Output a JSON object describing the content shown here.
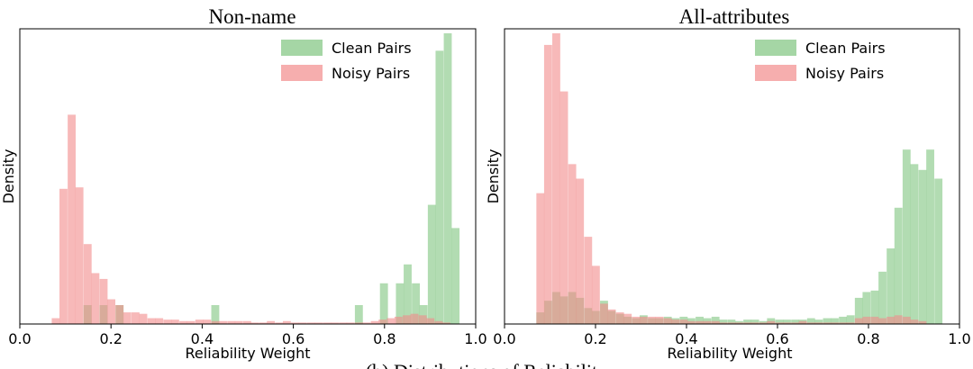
{
  "caption": "(b) Distributions of Reliability",
  "colors": {
    "clean": "#7fc47f",
    "noisy": "#f28b8b",
    "axis": "#000000"
  },
  "chart_data": [
    {
      "type": "bar",
      "title": "Non-name",
      "xlabel": "Reliability Weight",
      "ylabel": "Density",
      "xlim": [
        0.0,
        1.0
      ],
      "ylim": [
        0,
        1.0
      ],
      "xticks": [
        "0.0",
        "0.2",
        "0.4",
        "0.6",
        "0.8",
        "1.0"
      ],
      "bin_width": 0.0175,
      "series": [
        {
          "name": "Clean Pairs",
          "bins": [
            [
              0.14,
              0.065
            ],
            [
              0.175,
              0.065
            ],
            [
              0.21,
              0.065
            ],
            [
              0.42,
              0.065
            ],
            [
              0.735,
              0.065
            ],
            [
              0.79,
              0.14
            ],
            [
              0.825,
              0.14
            ],
            [
              0.842,
              0.205
            ],
            [
              0.86,
              0.14
            ],
            [
              0.877,
              0.065
            ],
            [
              0.895,
              0.41
            ],
            [
              0.912,
              0.94
            ],
            [
              0.93,
              1.0
            ],
            [
              0.947,
              0.33
            ]
          ]
        },
        {
          "name": "Noisy Pairs",
          "bins": [
            [
              0.07,
              0.02
            ],
            [
              0.087,
              0.465
            ],
            [
              0.105,
              0.72
            ],
            [
              0.122,
              0.47
            ],
            [
              0.14,
              0.275
            ],
            [
              0.157,
              0.175
            ],
            [
              0.175,
              0.155
            ],
            [
              0.192,
              0.085
            ],
            [
              0.21,
              0.065
            ],
            [
              0.227,
              0.04
            ],
            [
              0.245,
              0.04
            ],
            [
              0.262,
              0.035
            ],
            [
              0.28,
              0.02
            ],
            [
              0.297,
              0.02
            ],
            [
              0.315,
              0.015
            ],
            [
              0.332,
              0.015
            ],
            [
              0.35,
              0.01
            ],
            [
              0.367,
              0.01
            ],
            [
              0.385,
              0.015
            ],
            [
              0.402,
              0.015
            ],
            [
              0.42,
              0.01
            ],
            [
              0.437,
              0.01
            ],
            [
              0.455,
              0.01
            ],
            [
              0.472,
              0.01
            ],
            [
              0.49,
              0.01
            ],
            [
              0.507,
              0.005
            ],
            [
              0.525,
              0.005
            ],
            [
              0.542,
              0.01
            ],
            [
              0.56,
              0.005
            ],
            [
              0.577,
              0.01
            ],
            [
              0.595,
              0.005
            ],
            [
              0.612,
              0.005
            ],
            [
              0.63,
              0.005
            ],
            [
              0.647,
              0.005
            ],
            [
              0.665,
              0.005
            ],
            [
              0.682,
              0.005
            ],
            [
              0.7,
              0.005
            ],
            [
              0.717,
              0.005
            ],
            [
              0.735,
              0.005
            ],
            [
              0.752,
              0.005
            ],
            [
              0.77,
              0.01
            ],
            [
              0.787,
              0.015
            ],
            [
              0.805,
              0.02
            ],
            [
              0.822,
              0.025
            ],
            [
              0.84,
              0.03
            ],
            [
              0.857,
              0.035
            ],
            [
              0.875,
              0.03
            ],
            [
              0.892,
              0.02
            ],
            [
              0.91,
              0.01
            ],
            [
              0.927,
              0.005
            ]
          ]
        }
      ]
    },
    {
      "type": "bar",
      "title": "All-attributes",
      "xlabel": "Reliability Weight",
      "ylabel": "Density",
      "xlim": [
        0.0,
        1.0
      ],
      "ylim": [
        0,
        1.0
      ],
      "xticks": [
        "0.0",
        "0.2",
        "0.4",
        "0.6",
        "0.8",
        "1.0"
      ],
      "bin_width": 0.0175,
      "series": [
        {
          "name": "Clean Pairs",
          "bins": [
            [
              0.07,
              0.04
            ],
            [
              0.087,
              0.08
            ],
            [
              0.105,
              0.11
            ],
            [
              0.122,
              0.095
            ],
            [
              0.14,
              0.11
            ],
            [
              0.157,
              0.09
            ],
            [
              0.175,
              0.055
            ],
            [
              0.192,
              0.045
            ],
            [
              0.21,
              0.08
            ],
            [
              0.227,
              0.045
            ],
            [
              0.245,
              0.035
            ],
            [
              0.262,
              0.025
            ],
            [
              0.28,
              0.02
            ],
            [
              0.297,
              0.03
            ],
            [
              0.315,
              0.02
            ],
            [
              0.332,
              0.02
            ],
            [
              0.35,
              0.025
            ],
            [
              0.367,
              0.02
            ],
            [
              0.385,
              0.025
            ],
            [
              0.402,
              0.02
            ],
            [
              0.42,
              0.025
            ],
            [
              0.437,
              0.02
            ],
            [
              0.455,
              0.025
            ],
            [
              0.472,
              0.015
            ],
            [
              0.49,
              0.015
            ],
            [
              0.507,
              0.01
            ],
            [
              0.525,
              0.015
            ],
            [
              0.542,
              0.015
            ],
            [
              0.56,
              0.01
            ],
            [
              0.577,
              0.02
            ],
            [
              0.595,
              0.015
            ],
            [
              0.612,
              0.015
            ],
            [
              0.63,
              0.015
            ],
            [
              0.647,
              0.015
            ],
            [
              0.665,
              0.02
            ],
            [
              0.682,
              0.015
            ],
            [
              0.7,
              0.02
            ],
            [
              0.717,
              0.02
            ],
            [
              0.735,
              0.025
            ],
            [
              0.752,
              0.03
            ],
            [
              0.77,
              0.09
            ],
            [
              0.787,
              0.11
            ],
            [
              0.805,
              0.115
            ],
            [
              0.822,
              0.18
            ],
            [
              0.84,
              0.26
            ],
            [
              0.857,
              0.4
            ],
            [
              0.875,
              0.6
            ],
            [
              0.892,
              0.55
            ],
            [
              0.91,
              0.53
            ],
            [
              0.927,
              0.6
            ],
            [
              0.945,
              0.5
            ]
          ]
        },
        {
          "name": "Noisy Pairs",
          "bins": [
            [
              0.07,
              0.45
            ],
            [
              0.087,
              0.96
            ],
            [
              0.105,
              1.0
            ],
            [
              0.122,
              0.8
            ],
            [
              0.14,
              0.55
            ],
            [
              0.157,
              0.5
            ],
            [
              0.175,
              0.3
            ],
            [
              0.192,
              0.2
            ],
            [
              0.21,
              0.07
            ],
            [
              0.227,
              0.05
            ],
            [
              0.245,
              0.04
            ],
            [
              0.262,
              0.035
            ],
            [
              0.28,
              0.025
            ],
            [
              0.297,
              0.025
            ],
            [
              0.315,
              0.025
            ],
            [
              0.332,
              0.025
            ],
            [
              0.35,
              0.02
            ],
            [
              0.367,
              0.015
            ],
            [
              0.385,
              0.015
            ],
            [
              0.402,
              0.01
            ],
            [
              0.42,
              0.01
            ],
            [
              0.437,
              0.01
            ],
            [
              0.455,
              0.01
            ],
            [
              0.472,
              0.005
            ],
            [
              0.49,
              0.005
            ],
            [
              0.507,
              0.005
            ],
            [
              0.525,
              0.005
            ],
            [
              0.542,
              0.005
            ],
            [
              0.56,
              0.005
            ],
            [
              0.577,
              0.01
            ],
            [
              0.595,
              0.005
            ],
            [
              0.612,
              0.005
            ],
            [
              0.63,
              0.005
            ],
            [
              0.647,
              0.01
            ],
            [
              0.665,
              0.005
            ],
            [
              0.682,
              0.005
            ],
            [
              0.7,
              0.005
            ],
            [
              0.717,
              0.005
            ],
            [
              0.735,
              0.005
            ],
            [
              0.752,
              0.005
            ],
            [
              0.77,
              0.02
            ],
            [
              0.787,
              0.025
            ],
            [
              0.805,
              0.025
            ],
            [
              0.822,
              0.02
            ],
            [
              0.84,
              0.025
            ],
            [
              0.857,
              0.03
            ],
            [
              0.875,
              0.025
            ],
            [
              0.892,
              0.015
            ],
            [
              0.91,
              0.01
            ]
          ]
        }
      ]
    }
  ]
}
